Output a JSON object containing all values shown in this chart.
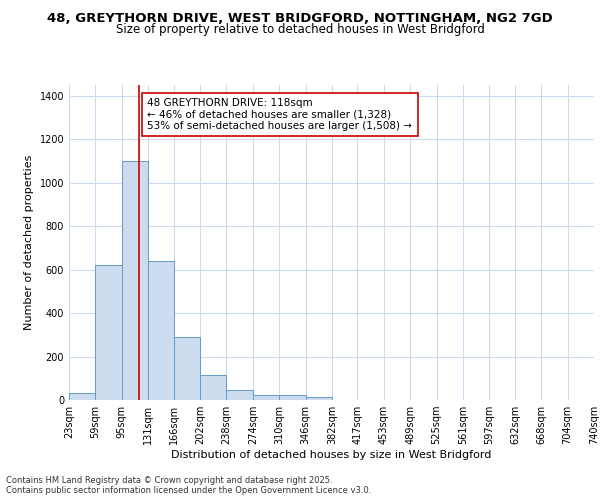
{
  "title_line1": "48, GREYTHORN DRIVE, WEST BRIDGFORD, NOTTINGHAM, NG2 7GD",
  "title_line2": "Size of property relative to detached houses in West Bridgford",
  "xlabel": "Distribution of detached houses by size in West Bridgford",
  "ylabel": "Number of detached properties",
  "bin_edges": [
    23,
    59,
    95,
    131,
    166,
    202,
    238,
    274,
    310,
    346,
    382,
    417,
    453,
    489,
    525,
    561,
    597,
    632,
    668,
    704,
    740
  ],
  "bin_heights": [
    30,
    620,
    1100,
    640,
    290,
    115,
    48,
    22,
    22,
    13,
    0,
    0,
    0,
    0,
    0,
    0,
    0,
    0,
    0,
    0
  ],
  "bar_facecolor": "#ccdcee",
  "bar_edgecolor": "#6699cc",
  "property_size": 118,
  "vline_color": "#cc0000",
  "annotation_text": "48 GREYTHORN DRIVE: 118sqm\n← 46% of detached houses are smaller (1,328)\n53% of semi-detached houses are larger (1,508) →",
  "annotation_box_edgecolor": "#cc0000",
  "annotation_box_facecolor": "#ffffff",
  "ylim": [
    0,
    1450
  ],
  "yticks": [
    0,
    200,
    400,
    600,
    800,
    1000,
    1200,
    1400
  ],
  "bg_color": "#ffffff",
  "plot_bg_color": "#ffffff",
  "grid_color": "#ccdcee",
  "tick_labels": [
    "23sqm",
    "59sqm",
    "95sqm",
    "131sqm",
    "166sqm",
    "202sqm",
    "238sqm",
    "274sqm",
    "310sqm",
    "346sqm",
    "382sqm",
    "417sqm",
    "453sqm",
    "489sqm",
    "525sqm",
    "561sqm",
    "597sqm",
    "632sqm",
    "668sqm",
    "704sqm",
    "740sqm"
  ],
  "footer_text": "Contains HM Land Registry data © Crown copyright and database right 2025.\nContains public sector information licensed under the Open Government Licence v3.0.",
  "title_fontsize": 9.5,
  "subtitle_fontsize": 8.5,
  "axis_label_fontsize": 8,
  "tick_fontsize": 7,
  "annotation_fontsize": 7.5,
  "footer_fontsize": 6
}
